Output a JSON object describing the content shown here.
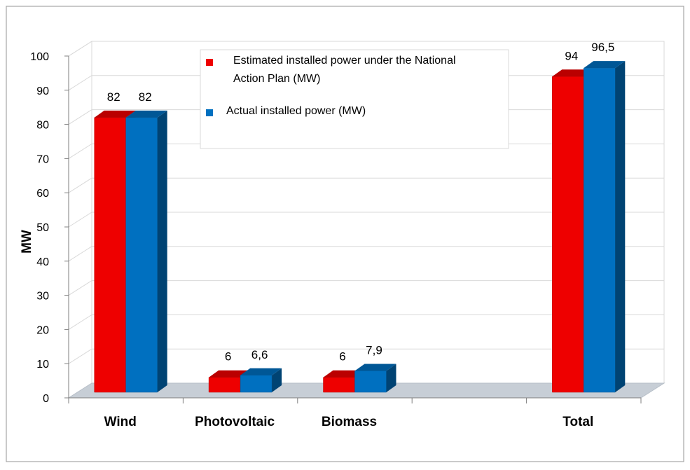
{
  "chart_data": {
    "type": "bar",
    "categories": [
      "Wind",
      "Photovoltaic",
      "Biomass",
      "Total"
    ],
    "series": [
      {
        "name": "Estimated installed power under the National Action Plan (MW)",
        "values": [
          82,
          6,
          6,
          94
        ],
        "labels": [
          "82",
          "6",
          "6",
          "94"
        ],
        "color": "#ee0000"
      },
      {
        "name": "Actual installed power (MW)",
        "values": [
          82,
          6.6,
          7.9,
          96.5
        ],
        "labels": [
          "82",
          "6,6",
          "7,9",
          "96,5"
        ],
        "color": "#0070c0"
      }
    ],
    "ylabel": "MW",
    "ylim": [
      0,
      100
    ],
    "yticks": [
      "0",
      "10",
      "20",
      "30",
      "40",
      "50",
      "60",
      "70",
      "80",
      "90",
      "100"
    ],
    "grid": true,
    "legend_position": "top-center",
    "legend_lines": [
      [
        "Estimated installed power under the National",
        "Action Plan (MW)"
      ],
      [
        "Actual installed power (MW)"
      ]
    ],
    "style": "3d-clustered-column"
  }
}
